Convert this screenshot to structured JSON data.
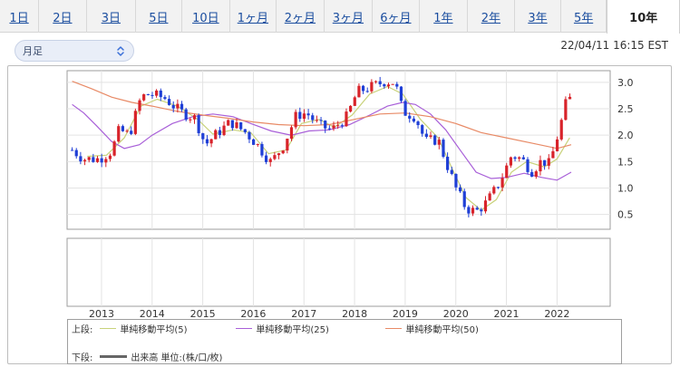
{
  "tabs": [
    {
      "label": "1日",
      "active": false
    },
    {
      "label": "2日",
      "active": false
    },
    {
      "label": "3日",
      "active": false
    },
    {
      "label": "5日",
      "active": false
    },
    {
      "label": "10日",
      "active": false
    },
    {
      "label": "1ヶ月",
      "active": false
    },
    {
      "label": "2ヶ月",
      "active": false
    },
    {
      "label": "3ヶ月",
      "active": false
    },
    {
      "label": "6ヶ月",
      "active": false
    },
    {
      "label": "1年",
      "active": false
    },
    {
      "label": "2年",
      "active": false
    },
    {
      "label": "3年",
      "active": false
    },
    {
      "label": "5年",
      "active": false
    },
    {
      "label": "10年",
      "active": true
    }
  ],
  "period_select": {
    "value": "月足"
  },
  "timestamp": "22/04/11 16:15 EST",
  "legend": {
    "upper_label": "上段:",
    "lower_label": "下段:",
    "lower_text": "出来高 単位:(株/口/枚)",
    "ma": [
      {
        "name": "単純移動平均(5)",
        "color": "#c8d27a"
      },
      {
        "name": "単純移動平均(25)",
        "color": "#a85fd8"
      },
      {
        "name": "単純移動平均(50)",
        "color": "#e88a66"
      }
    ],
    "volume_color": "#666666"
  },
  "chart_data": {
    "type": "candlestick",
    "x_ticks": [
      "2013",
      "2014",
      "2015",
      "2016",
      "2017",
      "2018",
      "2019",
      "2020",
      "2021",
      "2022"
    ],
    "y_ticks": [
      "0.5",
      "1.0",
      "1.5",
      "2.0",
      "2.5",
      "3.0"
    ],
    "ylim": [
      0.22,
      3.22
    ],
    "xlim": [
      2012.32,
      2023.05
    ],
    "up_color": "#d8232a",
    "down_color": "#1f3fd6",
    "ohlc_waypoints": [
      [
        2012.42,
        1.72
      ],
      [
        2012.65,
        1.55
      ],
      [
        2012.95,
        1.55
      ],
      [
        2013.2,
        1.7
      ],
      [
        2013.35,
        2.1
      ],
      [
        2013.55,
        2.0
      ],
      [
        2013.78,
        2.72
      ],
      [
        2013.95,
        2.78
      ],
      [
        2014.25,
        2.7
      ],
      [
        2014.55,
        2.45
      ],
      [
        2014.85,
        2.32
      ],
      [
        2015.05,
        1.82
      ],
      [
        2015.3,
        2.05
      ],
      [
        2015.55,
        2.25
      ],
      [
        2015.85,
        2.05
      ],
      [
        2016.05,
        1.85
      ],
      [
        2016.35,
        1.48
      ],
      [
        2016.6,
        1.82
      ],
      [
        2016.85,
        2.38
      ],
      [
        2017.05,
        2.42
      ],
      [
        2017.3,
        2.18
      ],
      [
        2017.55,
        2.1
      ],
      [
        2017.85,
        2.35
      ],
      [
        2018.05,
        2.82
      ],
      [
        2018.35,
        2.92
      ],
      [
        2018.6,
        3.02
      ],
      [
        2018.8,
        3.0
      ],
      [
        2018.95,
        2.45
      ],
      [
        2019.2,
        2.35
      ],
      [
        2019.4,
        1.88
      ],
      [
        2019.65,
        1.92
      ],
      [
        2019.85,
        1.38
      ],
      [
        2020.0,
        1.0
      ],
      [
        2020.2,
        0.62
      ],
      [
        2020.4,
        0.55
      ],
      [
        2020.6,
        0.72
      ],
      [
        2020.8,
        1.0
      ],
      [
        2020.95,
        1.28
      ],
      [
        2021.1,
        1.62
      ],
      [
        2021.3,
        1.55
      ],
      [
        2021.5,
        1.32
      ],
      [
        2021.7,
        1.52
      ],
      [
        2021.85,
        1.45
      ],
      [
        2021.95,
        1.78
      ],
      [
        2022.05,
        2.12
      ],
      [
        2022.18,
        2.62
      ],
      [
        2022.27,
        2.7
      ]
    ],
    "ma5": [
      [
        2012.72,
        1.6
      ],
      [
        2013.1,
        1.62
      ],
      [
        2013.45,
        1.95
      ],
      [
        2013.78,
        2.55
      ],
      [
        2014.1,
        2.68
      ],
      [
        2014.5,
        2.55
      ],
      [
        2014.9,
        2.3
      ],
      [
        2015.2,
        2.02
      ],
      [
        2015.6,
        2.1
      ],
      [
        2015.95,
        2.05
      ],
      [
        2016.3,
        1.65
      ],
      [
        2016.65,
        1.72
      ],
      [
        2016.95,
        2.22
      ],
      [
        2017.3,
        2.3
      ],
      [
        2017.6,
        2.15
      ],
      [
        2017.95,
        2.38
      ],
      [
        2018.3,
        2.78
      ],
      [
        2018.65,
        2.92
      ],
      [
        2018.95,
        2.78
      ],
      [
        2019.3,
        2.3
      ],
      [
        2019.65,
        1.95
      ],
      [
        2019.95,
        1.32
      ],
      [
        2020.2,
        0.82
      ],
      [
        2020.5,
        0.58
      ],
      [
        2020.8,
        0.78
      ],
      [
        2021.1,
        1.3
      ],
      [
        2021.4,
        1.5
      ],
      [
        2021.75,
        1.4
      ],
      [
        2022.0,
        1.55
      ],
      [
        2022.25,
        1.95
      ]
    ],
    "ma25": [
      [
        2012.42,
        2.58
      ],
      [
        2012.65,
        2.42
      ],
      [
        2012.9,
        2.18
      ],
      [
        2013.2,
        1.88
      ],
      [
        2013.45,
        1.75
      ],
      [
        2013.75,
        1.82
      ],
      [
        2014.0,
        2.0
      ],
      [
        2014.4,
        2.22
      ],
      [
        2014.8,
        2.35
      ],
      [
        2015.2,
        2.4
      ],
      [
        2015.6,
        2.35
      ],
      [
        2015.95,
        2.22
      ],
      [
        2016.35,
        2.08
      ],
      [
        2016.75,
        2.0
      ],
      [
        2017.1,
        2.08
      ],
      [
        2017.5,
        2.1
      ],
      [
        2017.9,
        2.2
      ],
      [
        2018.3,
        2.38
      ],
      [
        2018.65,
        2.55
      ],
      [
        2018.95,
        2.62
      ],
      [
        2019.2,
        2.58
      ],
      [
        2019.5,
        2.4
      ],
      [
        2019.8,
        2.1
      ],
      [
        2020.1,
        1.7
      ],
      [
        2020.4,
        1.3
      ],
      [
        2020.7,
        1.18
      ],
      [
        2021.0,
        1.2
      ],
      [
        2021.35,
        1.28
      ],
      [
        2021.7,
        1.2
      ],
      [
        2022.0,
        1.15
      ],
      [
        2022.28,
        1.3
      ]
    ],
    "ma50": [
      [
        2012.42,
        3.02
      ],
      [
        2012.8,
        2.88
      ],
      [
        2013.2,
        2.72
      ],
      [
        2013.6,
        2.62
      ],
      [
        2014.0,
        2.55
      ],
      [
        2014.5,
        2.45
      ],
      [
        2015.0,
        2.38
      ],
      [
        2015.5,
        2.32
      ],
      [
        2016.0,
        2.25
      ],
      [
        2016.5,
        2.2
      ],
      [
        2017.0,
        2.18
      ],
      [
        2017.5,
        2.2
      ],
      [
        2018.0,
        2.3
      ],
      [
        2018.5,
        2.4
      ],
      [
        2019.0,
        2.42
      ],
      [
        2019.5,
        2.35
      ],
      [
        2020.0,
        2.22
      ],
      [
        2020.5,
        2.05
      ],
      [
        2021.0,
        1.95
      ],
      [
        2021.5,
        1.85
      ],
      [
        2022.0,
        1.75
      ],
      [
        2022.28,
        1.82
      ]
    ]
  }
}
